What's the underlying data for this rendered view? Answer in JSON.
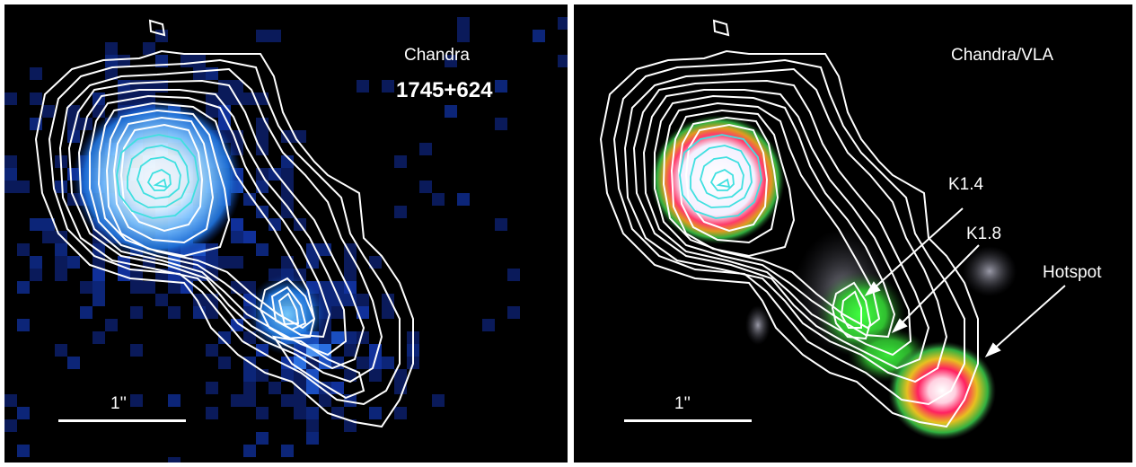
{
  "left_panel": {
    "instrument": "Chandra",
    "source_name": "1745+624",
    "scale_label": "1''"
  },
  "right_panel": {
    "instrument": "Chandra/VLA",
    "scale_label": "1''",
    "annotations": {
      "k14": "K1.4",
      "k18": "K1.8",
      "hotspot": "Hotspot"
    }
  },
  "colors": {
    "background": "#000000",
    "contour_outer": "#ffffff",
    "contour_inner": "#40e0e0",
    "xray_colormap": "blue",
    "radio_colormap": "green-red-white"
  }
}
